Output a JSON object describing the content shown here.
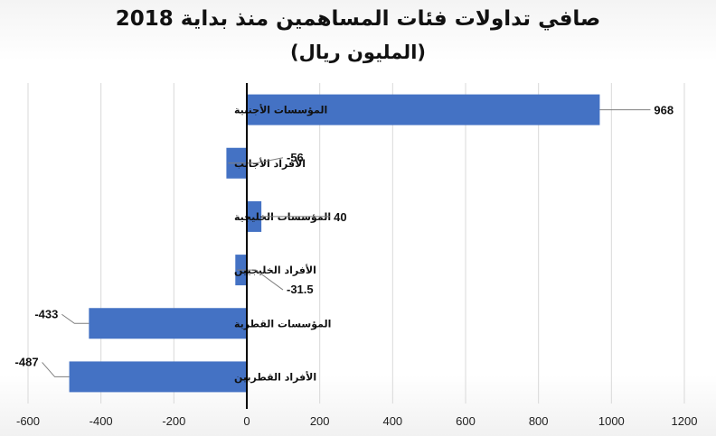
{
  "chart_data": {
    "type": "bar",
    "orientation": "horizontal",
    "title": "صافي تداولات فئات المساهمين منذ بداية 2018",
    "subtitle": "(المليون ريال)",
    "categories": [
      "المؤسسات الأجنبية",
      "الأفراد الأجانب",
      "المؤسسات الخليجية",
      "الأفراد الخليجيين",
      "المؤسسات القطرية",
      "الأفراد القطريين"
    ],
    "values": [
      968,
      -56,
      40,
      -31.5,
      -433,
      -487
    ],
    "data_labels": [
      "968",
      "-56",
      "40",
      "-31.5",
      "-433",
      "-487"
    ],
    "xlim": [
      -600,
      1200
    ],
    "xticks": [
      -600,
      -400,
      -200,
      0,
      200,
      400,
      600,
      800,
      1000,
      1200
    ],
    "xtick_labels": [
      "-600",
      "-400",
      "-200",
      "0",
      "200",
      "400",
      "600",
      "800",
      "1000",
      "1200"
    ],
    "grid": "vertical",
    "bar_color": "#4472c4",
    "grid_color": "#d9d9d9"
  }
}
